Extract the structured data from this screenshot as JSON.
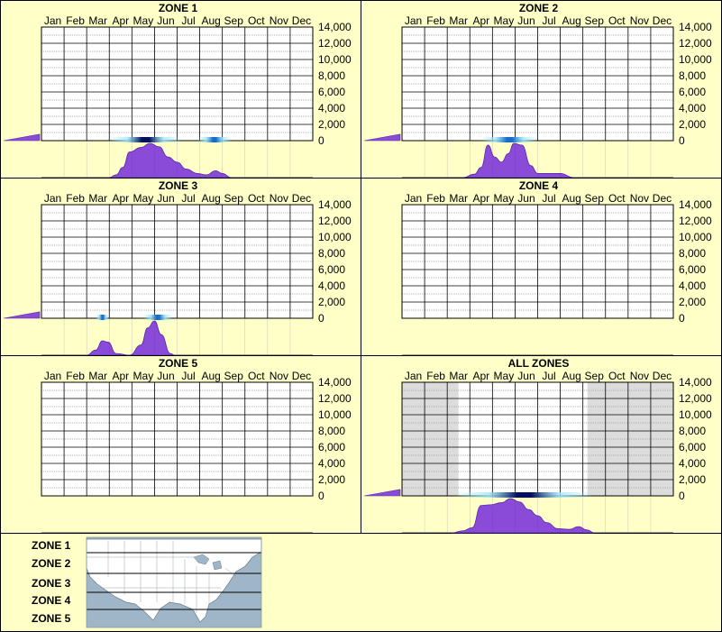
{
  "colors": {
    "background": "#ffffc8",
    "plot_fill": "#ffffff",
    "shade_fill": "#dcdcdc",
    "grid_major": "#000000",
    "grid_minor": "#9a9a9a",
    "density_fill": "#8a4bd8",
    "density_stroke": "#5a2aa8",
    "band_core": "#00105a",
    "band_mid": "#1a6cc8",
    "band_edge": "#a0e8f8",
    "map_water": "#9fb6c8",
    "map_land": "#ffffff"
  },
  "chart_data": [
    {
      "type": "area",
      "title": "ZONE 1",
      "categories": [
        "Jan",
        "Feb",
        "Mar",
        "Apr",
        "May",
        "Jun",
        "Jul",
        "Aug",
        "Sep",
        "Oct",
        "Nov",
        "Dec"
      ],
      "y_ticks": [
        "14,000",
        "12,000",
        "10,000",
        "8,000",
        "6,000",
        "4,000",
        "2,000",
        "0"
      ],
      "ylim": [
        0,
        14000
      ],
      "grid": true,
      "shaded_months": [],
      "activity_band": [
        {
          "start": 3.0,
          "end": 6.2,
          "intensity": 1.0
        },
        {
          "start": 6.9,
          "end": 8.4,
          "intensity": 0.35
        }
      ],
      "seasonal_density": [
        {
          "month": 3.0,
          "value": 0.0
        },
        {
          "month": 3.3,
          "value": 0.08
        },
        {
          "month": 3.6,
          "value": 0.3
        },
        {
          "month": 3.9,
          "value": 0.75
        },
        {
          "month": 4.4,
          "value": 0.88
        },
        {
          "month": 4.8,
          "value": 1.0
        },
        {
          "month": 5.2,
          "value": 0.9
        },
        {
          "month": 5.6,
          "value": 0.6
        },
        {
          "month": 6.0,
          "value": 0.45
        },
        {
          "month": 6.4,
          "value": 0.25
        },
        {
          "month": 6.9,
          "value": 0.12
        },
        {
          "month": 7.3,
          "value": 0.08
        },
        {
          "month": 7.7,
          "value": 0.2
        },
        {
          "month": 8.0,
          "value": 0.12
        },
        {
          "month": 8.4,
          "value": 0.0
        }
      ],
      "winter_wedge": 0.18
    },
    {
      "type": "area",
      "title": "ZONE 2",
      "categories": [
        "Jan",
        "Feb",
        "Mar",
        "Apr",
        "May",
        "Jun",
        "Jul",
        "Aug",
        "Sep",
        "Oct",
        "Nov",
        "Dec"
      ],
      "y_ticks": [
        "14,000",
        "12,000",
        "10,000",
        "8,000",
        "6,000",
        "4,000",
        "2,000",
        "0"
      ],
      "ylim": [
        0,
        14000
      ],
      "grid": true,
      "shaded_months": [],
      "activity_band": [
        {
          "start": 3.5,
          "end": 6.0,
          "intensity": 0.55
        }
      ],
      "seasonal_density": [
        {
          "month": 2.7,
          "value": 0.0
        },
        {
          "month": 3.2,
          "value": 0.1
        },
        {
          "month": 3.5,
          "value": 0.3
        },
        {
          "month": 3.8,
          "value": 0.95
        },
        {
          "month": 4.1,
          "value": 0.6
        },
        {
          "month": 4.4,
          "value": 0.45
        },
        {
          "month": 4.7,
          "value": 0.7
        },
        {
          "month": 4.95,
          "value": 1.0
        },
        {
          "month": 5.3,
          "value": 0.95
        },
        {
          "month": 5.7,
          "value": 0.35
        },
        {
          "month": 6.0,
          "value": 0.12
        },
        {
          "month": 6.6,
          "value": 0.12
        },
        {
          "month": 7.0,
          "value": 0.12
        },
        {
          "month": 7.6,
          "value": 0.0
        }
      ],
      "winter_wedge": 0.18
    },
    {
      "type": "area",
      "title": "ZONE 3",
      "categories": [
        "Jan",
        "Feb",
        "Mar",
        "Apr",
        "May",
        "Jun",
        "Jul",
        "Aug",
        "Sep",
        "Oct",
        "Nov",
        "Dec"
      ],
      "y_ticks": [
        "14,000",
        "12,000",
        "10,000",
        "8,000",
        "6,000",
        "4,000",
        "2,000",
        "0"
      ],
      "ylim": [
        0,
        14000
      ],
      "grid": true,
      "shaded_months": [],
      "activity_band": [
        {
          "start": 2.4,
          "end": 3.0,
          "intensity": 0.3
        },
        {
          "start": 4.5,
          "end": 5.8,
          "intensity": 0.45
        }
      ],
      "seasonal_density": [
        {
          "month": 2.0,
          "value": 0.0
        },
        {
          "month": 2.4,
          "value": 0.15
        },
        {
          "month": 2.7,
          "value": 0.42
        },
        {
          "month": 2.95,
          "value": 0.38
        },
        {
          "month": 3.3,
          "value": 0.05
        },
        {
          "month": 3.9,
          "value": 0.0
        },
        {
          "month": 4.4,
          "value": 0.3
        },
        {
          "month": 4.7,
          "value": 0.8
        },
        {
          "month": 5.0,
          "value": 1.0
        },
        {
          "month": 5.3,
          "value": 0.6
        },
        {
          "month": 5.7,
          "value": 0.05
        },
        {
          "month": 5.9,
          "value": 0.0
        }
      ],
      "winter_wedge": 0.18
    },
    {
      "type": "area",
      "title": "ZONE 4",
      "categories": [
        "Jan",
        "Feb",
        "Mar",
        "Apr",
        "May",
        "Jun",
        "Jul",
        "Aug",
        "Sep",
        "Oct",
        "Nov",
        "Dec"
      ],
      "y_ticks": [
        "14,000",
        "12,000",
        "10,000",
        "8,000",
        "6,000",
        "4,000",
        "2,000",
        "0"
      ],
      "ylim": [
        0,
        14000
      ],
      "grid": true,
      "shaded_months": [],
      "activity_band": [],
      "seasonal_density": [],
      "winter_wedge": 0
    },
    {
      "type": "area",
      "title": "ZONE 5",
      "categories": [
        "Jan",
        "Feb",
        "Mar",
        "Apr",
        "May",
        "Jun",
        "Jul",
        "Aug",
        "Sep",
        "Oct",
        "Nov",
        "Dec"
      ],
      "y_ticks": [
        "14,000",
        "12,000",
        "10,000",
        "8,000",
        "6,000",
        "4,000",
        "2,000",
        "0"
      ],
      "ylim": [
        0,
        14000
      ],
      "grid": true,
      "shaded_months": [],
      "activity_band": [],
      "seasonal_density": [],
      "winter_wedge": 0
    },
    {
      "type": "area",
      "title": "ALL ZONES",
      "categories": [
        "Jan",
        "Feb",
        "Mar",
        "Apr",
        "May",
        "Jun",
        "Jul",
        "Aug",
        "Sep",
        "Oct",
        "Nov",
        "Dec"
      ],
      "y_ticks": [
        "14,000",
        "12,000",
        "10,000",
        "8,000",
        "6,000",
        "4,000",
        "2,000",
        "0"
      ],
      "ylim": [
        0,
        14000
      ],
      "grid": true,
      "shaded_months": [
        [
          0.0,
          2.5
        ],
        [
          8.2,
          12.0
        ]
      ],
      "activity_band": [
        {
          "start": 2.3,
          "end": 8.5,
          "intensity": 1.0
        }
      ],
      "seasonal_density": [
        {
          "month": 2.2,
          "value": 0.0
        },
        {
          "month": 2.7,
          "value": 0.06
        },
        {
          "month": 3.1,
          "value": 0.15
        },
        {
          "month": 3.5,
          "value": 0.8
        },
        {
          "month": 3.9,
          "value": 0.82
        },
        {
          "month": 4.4,
          "value": 0.88
        },
        {
          "month": 4.8,
          "value": 1.0
        },
        {
          "month": 5.2,
          "value": 0.9
        },
        {
          "month": 5.6,
          "value": 0.68
        },
        {
          "month": 6.0,
          "value": 0.5
        },
        {
          "month": 6.4,
          "value": 0.3
        },
        {
          "month": 6.9,
          "value": 0.12
        },
        {
          "month": 7.4,
          "value": 0.1
        },
        {
          "month": 7.8,
          "value": 0.18
        },
        {
          "month": 8.2,
          "value": 0.08
        },
        {
          "month": 8.5,
          "value": 0.0
        }
      ],
      "winter_wedge": 0.18
    }
  ],
  "legend": {
    "zones": [
      "ZONE 1",
      "ZONE 2",
      "ZONE 3",
      "ZONE 4",
      "ZONE 5"
    ]
  }
}
